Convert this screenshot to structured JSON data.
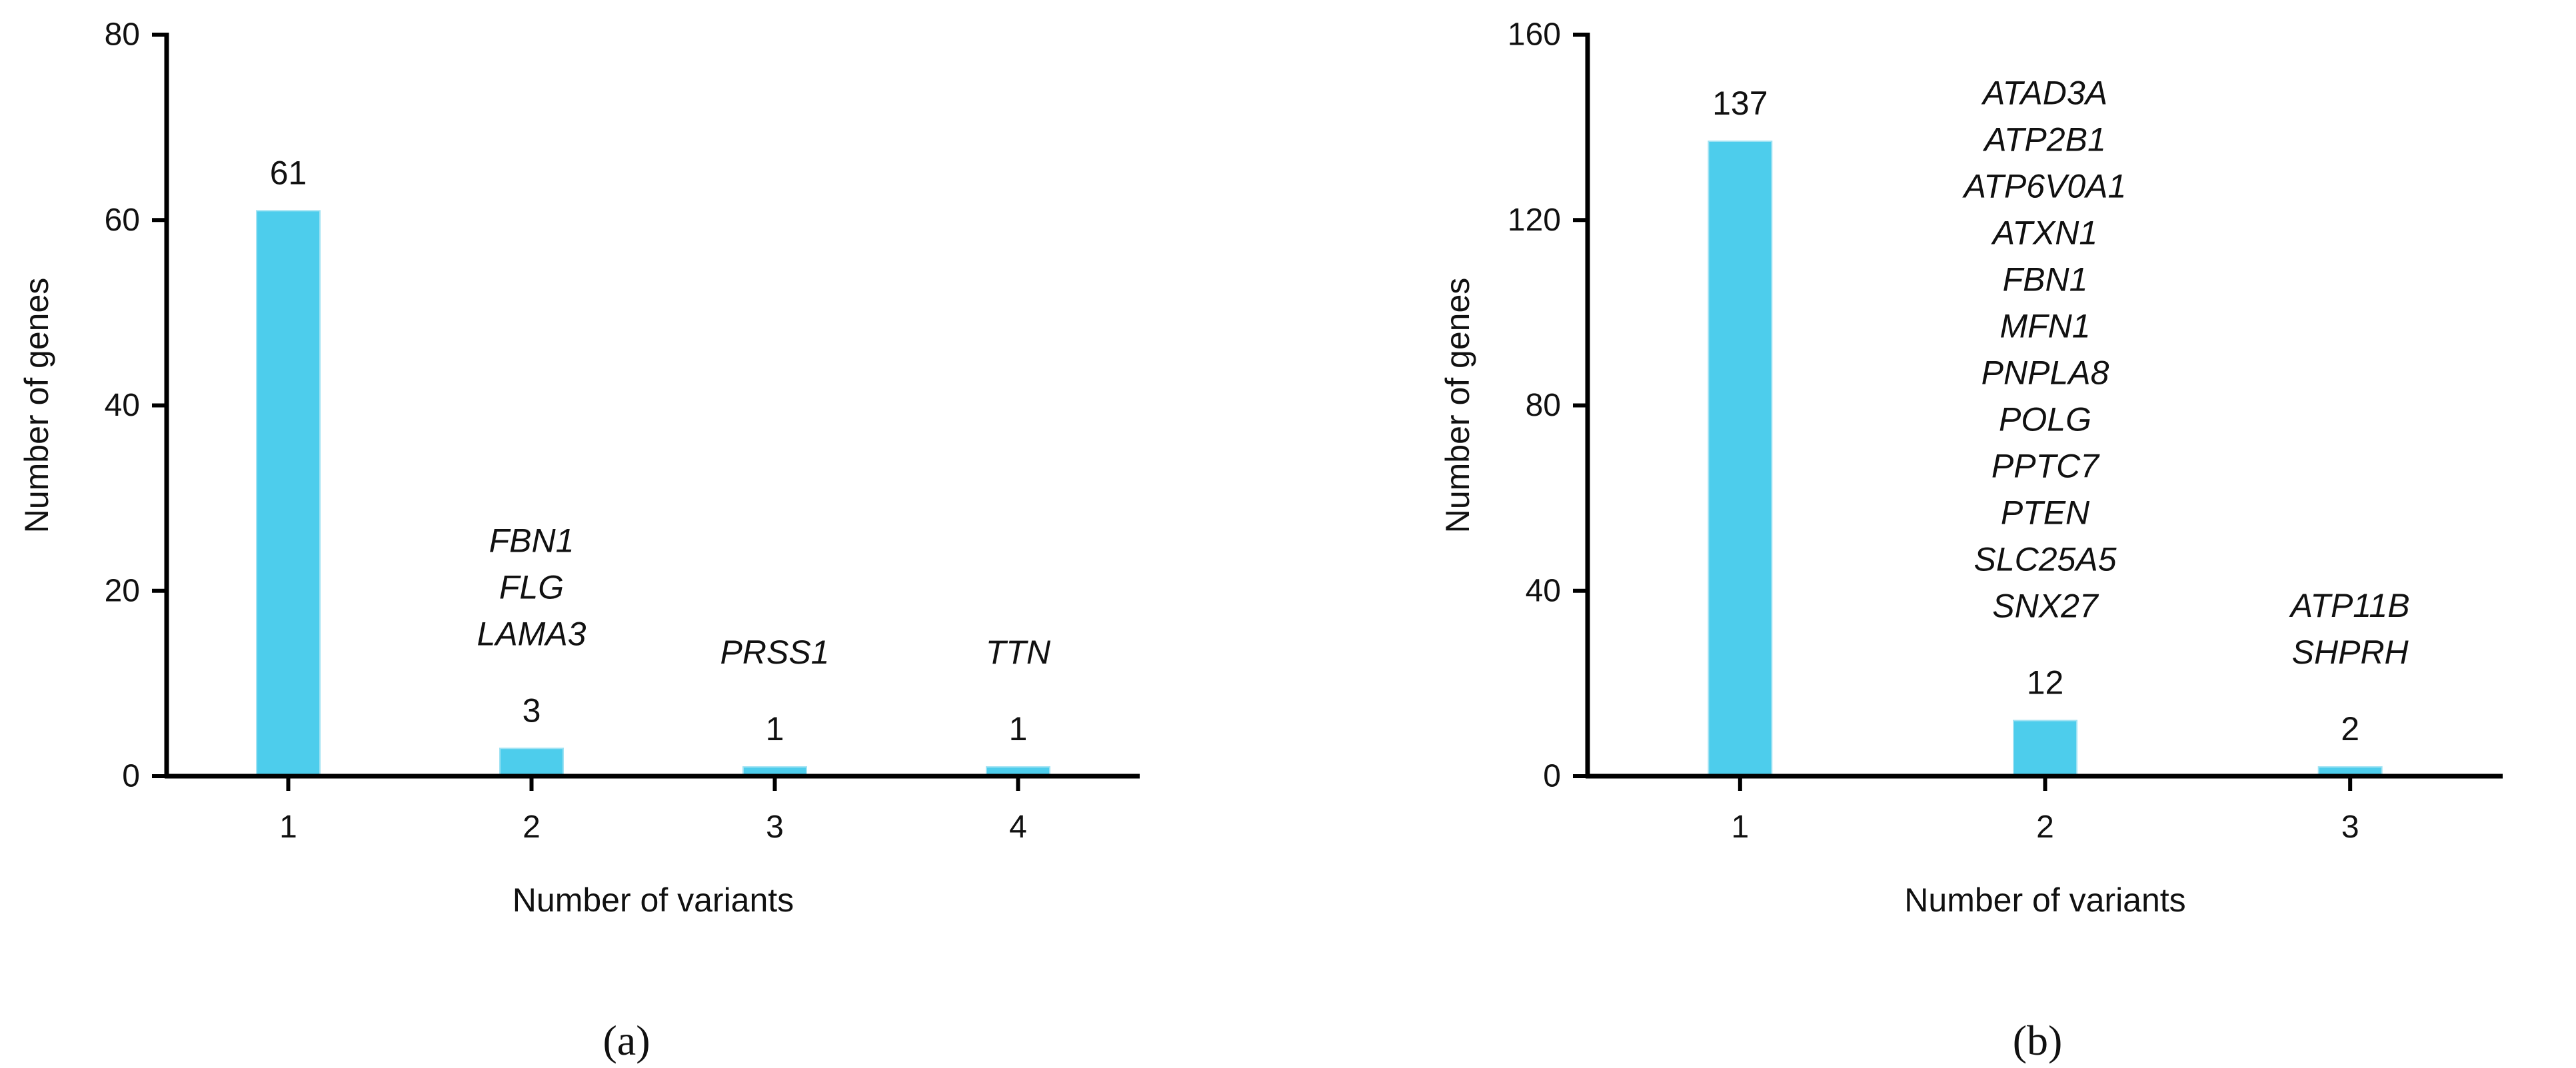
{
  "chart_data": [
    {
      "type": "bar",
      "panel_label": "(a)",
      "xlabel": "Number of variants",
      "ylabel": "Number of genes",
      "categories": [
        "1",
        "2",
        "3",
        "4"
      ],
      "values": [
        61,
        3,
        1,
        1
      ],
      "data_labels": [
        "61",
        "3",
        "1",
        "1"
      ],
      "annotations": [
        [],
        [
          "FBN1",
          "FLG",
          "LAMA3"
        ],
        [
          "PRSS1"
        ],
        [
          "TTN"
        ]
      ],
      "ylim": [
        0,
        80
      ],
      "yticks": [
        "0",
        "20",
        "40",
        "60",
        "80"
      ],
      "bar_color": "#4dcdec",
      "grid": false,
      "legend": "none"
    },
    {
      "type": "bar",
      "panel_label": "(b)",
      "xlabel": "Number of variants",
      "ylabel": "Number of genes",
      "categories": [
        "1",
        "2",
        "3"
      ],
      "values": [
        137,
        12,
        2
      ],
      "data_labels": [
        "137",
        "12",
        "2"
      ],
      "annotations": [
        [],
        [
          "ATAD3A",
          "ATP2B1",
          "ATP6V0A1",
          "ATXN1",
          "FBN1",
          "MFN1",
          "PNPLA8",
          "POLG",
          "PPTC7",
          "PTEN",
          "SLC25A5",
          "SNX27"
        ],
        [
          "ATP11B",
          "SHPRH"
        ]
      ],
      "ylim": [
        0,
        160
      ],
      "yticks": [
        "0",
        "40",
        "80",
        "120",
        "160"
      ],
      "bar_color": "#4dcdec",
      "grid": false,
      "legend": "none"
    }
  ]
}
